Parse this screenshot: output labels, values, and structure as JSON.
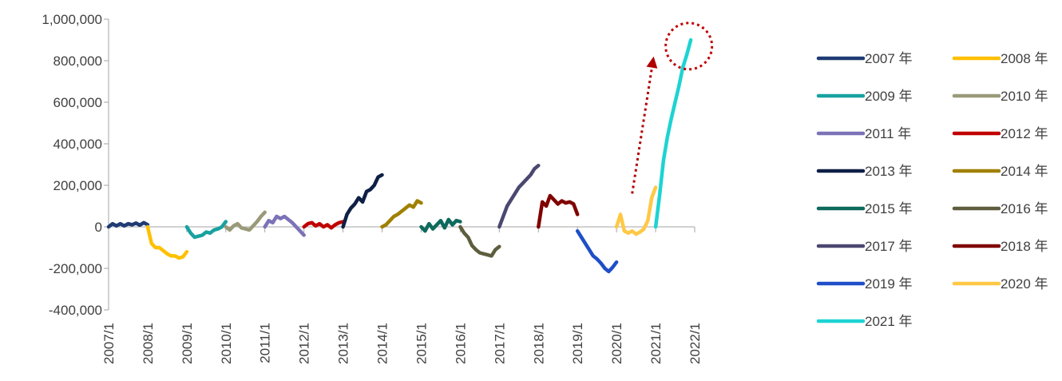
{
  "chart_data": {
    "type": "line",
    "title": "",
    "xlabel": "",
    "ylabel": "",
    "ylim": [
      -400000,
      1000000
    ],
    "y_ticks": [
      -400000,
      -200000,
      0,
      200000,
      400000,
      600000,
      800000,
      1000000
    ],
    "y_tick_labels": [
      "-400,000",
      "-200,000",
      "0",
      "200,000",
      "400,000",
      "600,000",
      "800,000",
      "1,000,000"
    ],
    "xlim": [
      2007.0,
      2022.0
    ],
    "x_ticks": [
      2007,
      2008,
      2009,
      2010,
      2011,
      2012,
      2013,
      2014,
      2015,
      2016,
      2017,
      2018,
      2019,
      2020,
      2021,
      2022
    ],
    "x_tick_labels": [
      "2007/1",
      "2008/1",
      "2009/1",
      "2010/1",
      "2011/1",
      "2012/1",
      "2013/1",
      "2014/1",
      "2015/1",
      "2016/1",
      "2017/1",
      "2018/1",
      "2019/1",
      "2020/1",
      "2021/1",
      "2022/1"
    ],
    "grid": false,
    "legend_position": "right",
    "series": [
      {
        "name": "2007 年",
        "color": "#1f3b73",
        "x": [
          2007.0,
          2007.1,
          2007.2,
          2007.3,
          2007.4,
          2007.5,
          2007.6,
          2007.7,
          2007.8,
          2007.9,
          2008.0
        ],
        "values": [
          0,
          15000,
          5000,
          15000,
          5000,
          15000,
          10000,
          18000,
          8000,
          20000,
          10000
        ]
      },
      {
        "name": "2008 年",
        "color": "#ffc000",
        "x": [
          2008.0,
          2008.1,
          2008.2,
          2008.3,
          2008.4,
          2008.5,
          2008.6,
          2008.7,
          2008.8,
          2008.9,
          2009.0
        ],
        "values": [
          0,
          -80000,
          -100000,
          -100000,
          -115000,
          -130000,
          -140000,
          -140000,
          -150000,
          -145000,
          -120000
        ]
      },
      {
        "name": "2009 年",
        "color": "#17a2a0",
        "x": [
          2009.0,
          2009.1,
          2009.2,
          2009.3,
          2009.4,
          2009.5,
          2009.6,
          2009.7,
          2009.8,
          2009.9,
          2010.0
        ],
        "values": [
          0,
          -30000,
          -50000,
          -45000,
          -40000,
          -25000,
          -30000,
          -15000,
          -10000,
          0,
          25000
        ]
      },
      {
        "name": "2010 年",
        "color": "#9a9a7a",
        "x": [
          2010.0,
          2010.1,
          2010.2,
          2010.3,
          2010.4,
          2010.5,
          2010.6,
          2010.7,
          2010.8,
          2010.9,
          2011.0
        ],
        "values": [
          0,
          -15000,
          5000,
          15000,
          -5000,
          -10000,
          -15000,
          5000,
          25000,
          50000,
          70000
        ]
      },
      {
        "name": "2011 年",
        "color": "#7b72b8",
        "x": [
          2011.0,
          2011.1,
          2011.2,
          2011.3,
          2011.4,
          2011.5,
          2011.6,
          2011.7,
          2011.8,
          2011.9,
          2012.0
        ],
        "values": [
          0,
          30000,
          20000,
          50000,
          40000,
          50000,
          35000,
          20000,
          0,
          -20000,
          -40000
        ]
      },
      {
        "name": "2012 年",
        "color": "#c00000",
        "x": [
          2012.0,
          2012.1,
          2012.2,
          2012.3,
          2012.4,
          2012.5,
          2012.6,
          2012.7,
          2012.8,
          2012.9,
          2013.0
        ],
        "values": [
          0,
          15000,
          20000,
          5000,
          15000,
          0,
          10000,
          -5000,
          10000,
          20000,
          25000
        ]
      },
      {
        "name": "2013 年",
        "color": "#0f1f45",
        "x": [
          2013.0,
          2013.1,
          2013.2,
          2013.3,
          2013.4,
          2013.5,
          2013.6,
          2013.7,
          2013.8,
          2013.9,
          2014.0
        ],
        "values": [
          0,
          60000,
          90000,
          110000,
          140000,
          120000,
          170000,
          180000,
          200000,
          240000,
          250000
        ]
      },
      {
        "name": "2014 年",
        "color": "#a08000",
        "x": [
          2014.0,
          2014.1,
          2014.2,
          2014.3,
          2014.4,
          2014.5,
          2014.6,
          2014.7,
          2014.8,
          2014.9,
          2015.0
        ],
        "values": [
          0,
          10000,
          30000,
          50000,
          60000,
          75000,
          90000,
          105000,
          95000,
          125000,
          115000
        ]
      },
      {
        "name": "2015 年",
        "color": "#0d6a5c",
        "x": [
          2015.0,
          2015.1,
          2015.2,
          2015.3,
          2015.4,
          2015.5,
          2015.6,
          2015.7,
          2015.8,
          2015.9,
          2016.0
        ],
        "values": [
          0,
          -20000,
          15000,
          -10000,
          10000,
          30000,
          -5000,
          35000,
          10000,
          30000,
          25000
        ]
      },
      {
        "name": "2016 年",
        "color": "#5e5e3e",
        "x": [
          2016.0,
          2016.1,
          2016.2,
          2016.3,
          2016.4,
          2016.5,
          2016.6,
          2016.7,
          2016.8,
          2016.9,
          2017.0
        ],
        "values": [
          0,
          -30000,
          -50000,
          -90000,
          -110000,
          -125000,
          -130000,
          -135000,
          -140000,
          -110000,
          -95000
        ]
      },
      {
        "name": "2017 年",
        "color": "#4a4870",
        "x": [
          2017.0,
          2017.1,
          2017.2,
          2017.3,
          2017.4,
          2017.5,
          2017.6,
          2017.7,
          2017.8,
          2017.9,
          2018.0
        ],
        "values": [
          0,
          50000,
          100000,
          130000,
          160000,
          190000,
          210000,
          230000,
          250000,
          280000,
          295000
        ]
      },
      {
        "name": "2018 年",
        "color": "#800000",
        "x": [
          2018.0,
          2018.1,
          2018.2,
          2018.3,
          2018.4,
          2018.5,
          2018.6,
          2018.7,
          2018.8,
          2018.9,
          2019.0
        ],
        "values": [
          0,
          120000,
          100000,
          150000,
          130000,
          110000,
          125000,
          115000,
          120000,
          110000,
          60000
        ]
      },
      {
        "name": "2019 年",
        "color": "#1f4fc8",
        "x": [
          2019.0,
          2019.1,
          2019.2,
          2019.3,
          2019.4,
          2019.5,
          2019.6,
          2019.7,
          2019.8,
          2019.9,
          2020.0
        ],
        "values": [
          -20000,
          -50000,
          -80000,
          -110000,
          -140000,
          -155000,
          -175000,
          -200000,
          -215000,
          -195000,
          -170000
        ]
      },
      {
        "name": "2020 年",
        "color": "#ffc845",
        "x": [
          2020.0,
          2020.1,
          2020.2,
          2020.3,
          2020.4,
          2020.5,
          2020.6,
          2020.7,
          2020.8,
          2020.9,
          2021.0
        ],
        "values": [
          0,
          60000,
          -20000,
          -30000,
          -20000,
          -35000,
          -25000,
          -10000,
          30000,
          140000,
          190000
        ]
      },
      {
        "name": "2021 年",
        "color": "#1dd3d3",
        "x": [
          2021.0,
          2021.1,
          2021.2,
          2021.3,
          2021.4,
          2021.5,
          2021.6,
          2021.7,
          2021.8,
          2021.9
        ],
        "values": [
          0,
          150000,
          320000,
          430000,
          520000,
          600000,
          680000,
          770000,
          830000,
          900000
        ]
      }
    ],
    "annotations": [
      {
        "type": "dotted-arrow",
        "color": "#b00000",
        "from": [
          2020.4,
          160000
        ],
        "to": [
          2020.95,
          820000
        ]
      },
      {
        "type": "dotted-circle",
        "color": "#c00000",
        "center": [
          2021.85,
          870000
        ]
      }
    ]
  }
}
